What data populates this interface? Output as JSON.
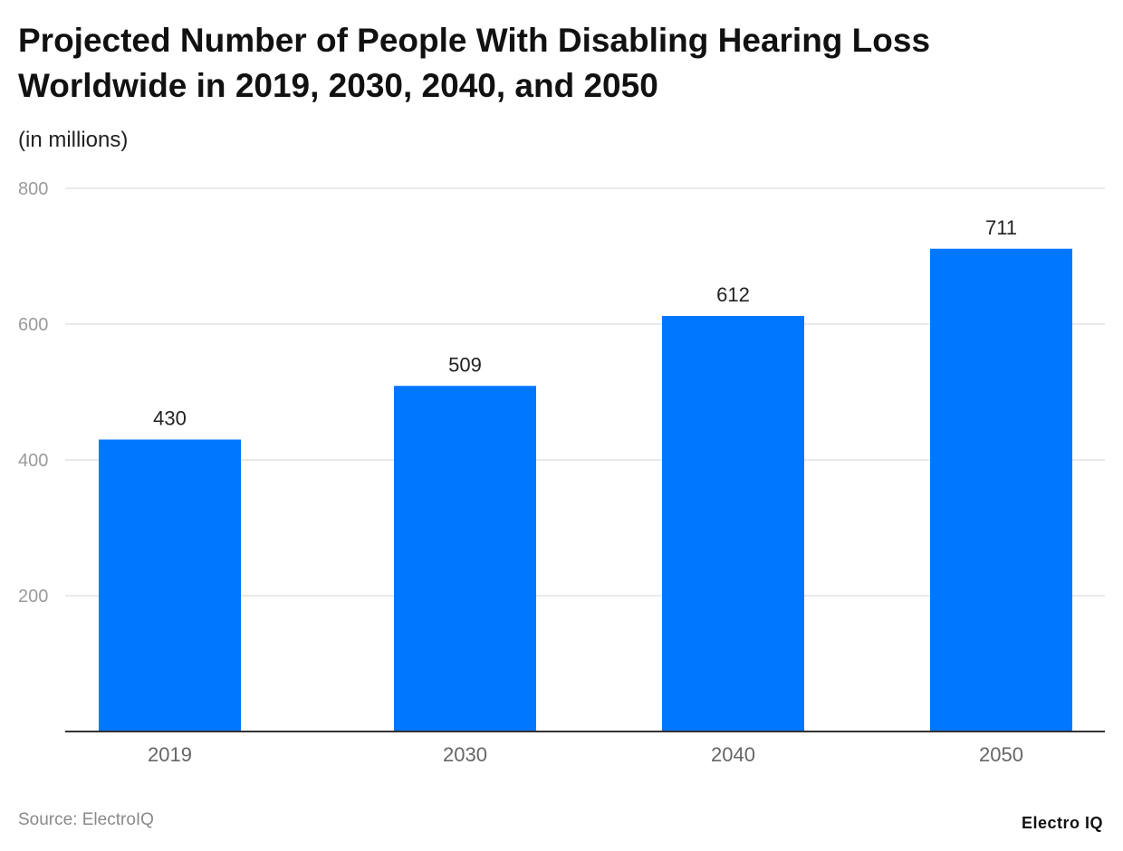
{
  "chart_data": {
    "type": "bar",
    "title": "Projected Number of People With Disabling Hearing Loss Worldwide in 2019, 2030, 2040, and 2050",
    "subtitle": "(in millions)",
    "categories": [
      "2019",
      "2030",
      "2040",
      "2050"
    ],
    "values": [
      430,
      509,
      612,
      711
    ],
    "ylim": [
      0,
      800
    ],
    "yticks": [
      200,
      400,
      600,
      800
    ],
    "grid": true,
    "bar_color": "#0077ff",
    "xlabel": "",
    "ylabel": ""
  },
  "footer": {
    "source": "Source: ElectroIQ",
    "logo": "Electro IQ"
  }
}
